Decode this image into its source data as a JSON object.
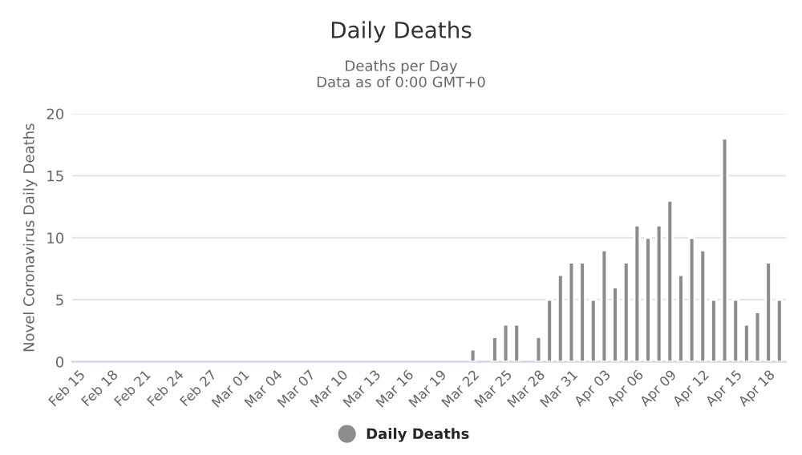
{
  "chart_data": {
    "type": "bar",
    "title": "Daily Deaths",
    "subtitle": "Deaths per Day\nData as of 0:00 GMT+0",
    "ylabel": "Novel Coronavirus Daily Deaths",
    "categories": [
      "Feb 15",
      null,
      null,
      "Feb 18",
      null,
      null,
      "Feb 21",
      null,
      null,
      "Feb 24",
      null,
      null,
      "Feb 27",
      null,
      null,
      "Mar 01",
      null,
      null,
      "Mar 04",
      null,
      null,
      "Mar 07",
      null,
      null,
      "Mar 10",
      null,
      null,
      "Mar 13",
      null,
      null,
      "Mar 16",
      null,
      null,
      "Mar 19",
      null,
      null,
      "Mar 22",
      null,
      null,
      "Mar 25",
      null,
      null,
      "Mar 28",
      null,
      null,
      "Mar 31",
      null,
      null,
      "Apr 03",
      null,
      null,
      "Apr 06",
      null,
      null,
      "Apr 09",
      null,
      null,
      "Apr 12",
      null,
      null,
      "Apr 15",
      null,
      null,
      "Apr 18",
      null
    ],
    "series": [
      {
        "name": "Daily Deaths",
        "color": "#8c8c8c",
        "values": [
          null,
          null,
          null,
          null,
          null,
          null,
          null,
          null,
          null,
          null,
          null,
          null,
          null,
          null,
          null,
          null,
          null,
          null,
          null,
          null,
          null,
          null,
          null,
          null,
          null,
          null,
          null,
          null,
          null,
          null,
          null,
          null,
          null,
          null,
          null,
          null,
          1,
          null,
          2,
          3,
          3,
          null,
          2,
          5,
          7,
          8,
          8,
          5,
          9,
          6,
          8,
          11,
          10,
          11,
          13,
          7,
          10,
          9,
          5,
          18,
          5,
          3,
          4,
          8,
          5
        ]
      }
    ],
    "ylim": [
      0,
      20
    ],
    "yticks": [
      0,
      5,
      10,
      15,
      20
    ],
    "grid": "y",
    "legend": "bottom"
  }
}
